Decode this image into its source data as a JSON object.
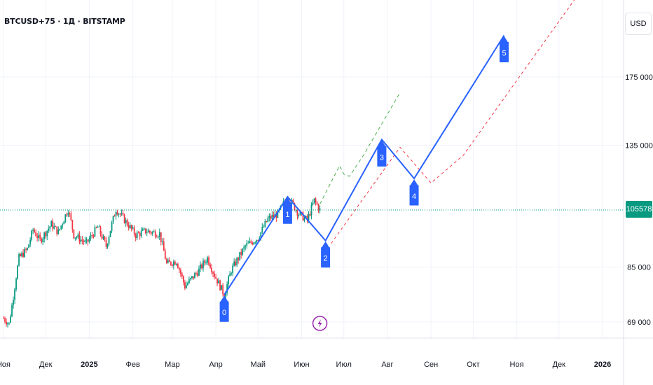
{
  "header": {
    "symbol_line": "BTCUSD+75 · 1Д · BITSTAMP",
    "currency": "USD"
  },
  "current_price_label": "105578",
  "colors": {
    "wave": "#2962ff",
    "bull_candle": "#089981",
    "bear_candle": "#f23645",
    "green_dashed": "#4caf50",
    "red_dashed": "#f23645",
    "price_line": "#089981",
    "marker": "#9c27b0"
  },
  "chart_data": {
    "type": "candlestick",
    "x_axis": {
      "tick_labels": [
        "Ноя",
        "Дек",
        "2025",
        "Фев",
        "Мар",
        "Апр",
        "Май",
        "Июн",
        "Июл",
        "Авг",
        "Сен",
        "Окт",
        "Ноя",
        "Дек",
        "2026"
      ],
      "tick_dates": [
        "2024-11-01",
        "2024-12-01",
        "2025-01-01",
        "2025-02-01",
        "2025-03-01",
        "2025-04-01",
        "2025-05-01",
        "2025-06-01",
        "2025-07-01",
        "2025-08-01",
        "2025-09-01",
        "2025-10-01",
        "2025-11-01",
        "2025-12-01",
        "2026-01-01"
      ],
      "bold_labels": [
        "2025",
        "2026"
      ]
    },
    "y_axis": {
      "scale": "log",
      "tick_labels": [
        "69 000",
        "85 000",
        "135 000",
        "175 000"
      ],
      "tick_values": [
        69000,
        85000,
        135000,
        175000
      ]
    },
    "current_price": 105578,
    "price_path": [
      [
        "2024-11-01",
        70000
      ],
      [
        "2024-11-05",
        68500
      ],
      [
        "2024-11-08",
        76000
      ],
      [
        "2024-11-12",
        88000
      ],
      [
        "2024-11-18",
        91000
      ],
      [
        "2024-11-22",
        98000
      ],
      [
        "2024-11-27",
        94000
      ],
      [
        "2024-12-05",
        100000
      ],
      [
        "2024-12-10",
        97000
      ],
      [
        "2024-12-17",
        106000
      ],
      [
        "2024-12-21",
        96000
      ],
      [
        "2024-12-30",
        93000
      ],
      [
        "2025-01-07",
        99000
      ],
      [
        "2025-01-13",
        92000
      ],
      [
        "2025-01-20",
        106000
      ],
      [
        "2025-01-27",
        101000
      ],
      [
        "2025-02-03",
        96000
      ],
      [
        "2025-02-10",
        97500
      ],
      [
        "2025-02-20",
        96500
      ],
      [
        "2025-02-25",
        86000
      ],
      [
        "2025-03-04",
        87000
      ],
      [
        "2025-03-10",
        79000
      ],
      [
        "2025-03-20",
        84000
      ],
      [
        "2025-03-26",
        88000
      ],
      [
        "2025-03-31",
        82500
      ],
      [
        "2025-04-07",
        76500
      ],
      [
        "2025-04-12",
        84000
      ],
      [
        "2025-04-22",
        92000
      ],
      [
        "2025-05-01",
        95000
      ],
      [
        "2025-05-08",
        102000
      ],
      [
        "2025-05-15",
        104000
      ],
      [
        "2025-05-22",
        111000
      ],
      [
        "2025-05-30",
        104000
      ],
      [
        "2025-06-05",
        101500
      ],
      [
        "2025-06-10",
        109500
      ],
      [
        "2025-06-14",
        105578
      ]
    ],
    "wave_count": {
      "labels": [
        "0",
        "1",
        "2",
        "3",
        "4",
        "5"
      ],
      "dates": [
        "2025-04-07",
        "2025-05-22",
        "2025-06-18",
        "2025-07-28",
        "2025-08-20",
        "2025-10-23"
      ],
      "prices": [
        76500,
        111000,
        94000,
        138000,
        119000,
        205000
      ]
    },
    "green_dashed_projection": {
      "dates": [
        "2025-06-14",
        "2025-06-28",
        "2025-07-01",
        "2025-07-05",
        "2025-07-15",
        "2025-08-10"
      ],
      "prices": [
        108000,
        125000,
        121000,
        120000,
        130000,
        165000
      ]
    },
    "red_dashed_projection": {
      "dates": [
        "2025-06-22",
        "2025-08-10",
        "2025-09-01",
        "2025-09-24",
        "2025-12-15"
      ],
      "prices": [
        93000,
        134000,
        117000,
        130000,
        240000
      ]
    },
    "grid": true
  }
}
